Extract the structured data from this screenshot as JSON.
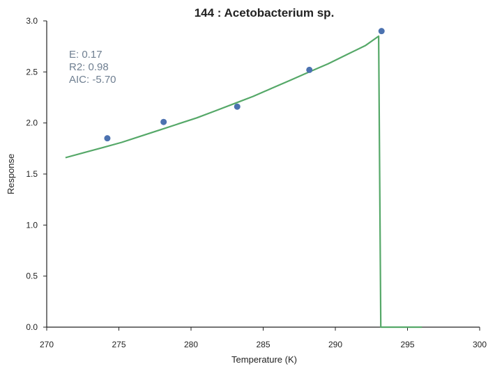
{
  "chart_data": {
    "type": "scatter",
    "title": "144 : Acetobacterium sp.",
    "xlabel": "Temperature (K)",
    "ylabel": "Response",
    "xlim": [
      270,
      300
    ],
    "ylim": [
      0,
      3.0
    ],
    "xticks": [
      270,
      275,
      280,
      285,
      290,
      295,
      300
    ],
    "yticks": [
      0.0,
      0.5,
      1.0,
      1.5,
      2.0,
      2.5,
      3.0
    ],
    "xtick_labels": [
      "270",
      "275",
      "280",
      "285",
      "290",
      "295",
      "300"
    ],
    "ytick_labels": [
      "0.0",
      "0.5",
      "1.0",
      "1.5",
      "2.0",
      "2.5",
      "3.0"
    ],
    "grid": false,
    "series": [
      {
        "kind": "points",
        "color": "#4c72b0",
        "x": [
          274.2,
          278.1,
          283.2,
          288.2,
          293.2
        ],
        "y": [
          1.85,
          2.01,
          2.16,
          2.52,
          2.9
        ]
      },
      {
        "kind": "line",
        "color": "#55a868",
        "x": [
          271.3,
          272.6,
          273.9,
          275.2,
          276.5,
          277.8,
          279.1,
          280.4,
          281.7,
          283.0,
          284.3,
          285.6,
          286.9,
          288.2,
          289.5,
          290.8,
          292.1,
          293.0,
          293.15,
          296.0
        ],
        "y": [
          1.66,
          1.71,
          1.76,
          1.81,
          1.87,
          1.93,
          1.99,
          2.05,
          2.12,
          2.19,
          2.26,
          2.34,
          2.42,
          2.5,
          2.58,
          2.67,
          2.76,
          2.85,
          0.0,
          0.0
        ]
      }
    ],
    "annotations": [
      "E:  0.17",
      "R2:  0.98",
      "AIC: -5.70"
    ],
    "annotation_color": "#6f7f91"
  }
}
